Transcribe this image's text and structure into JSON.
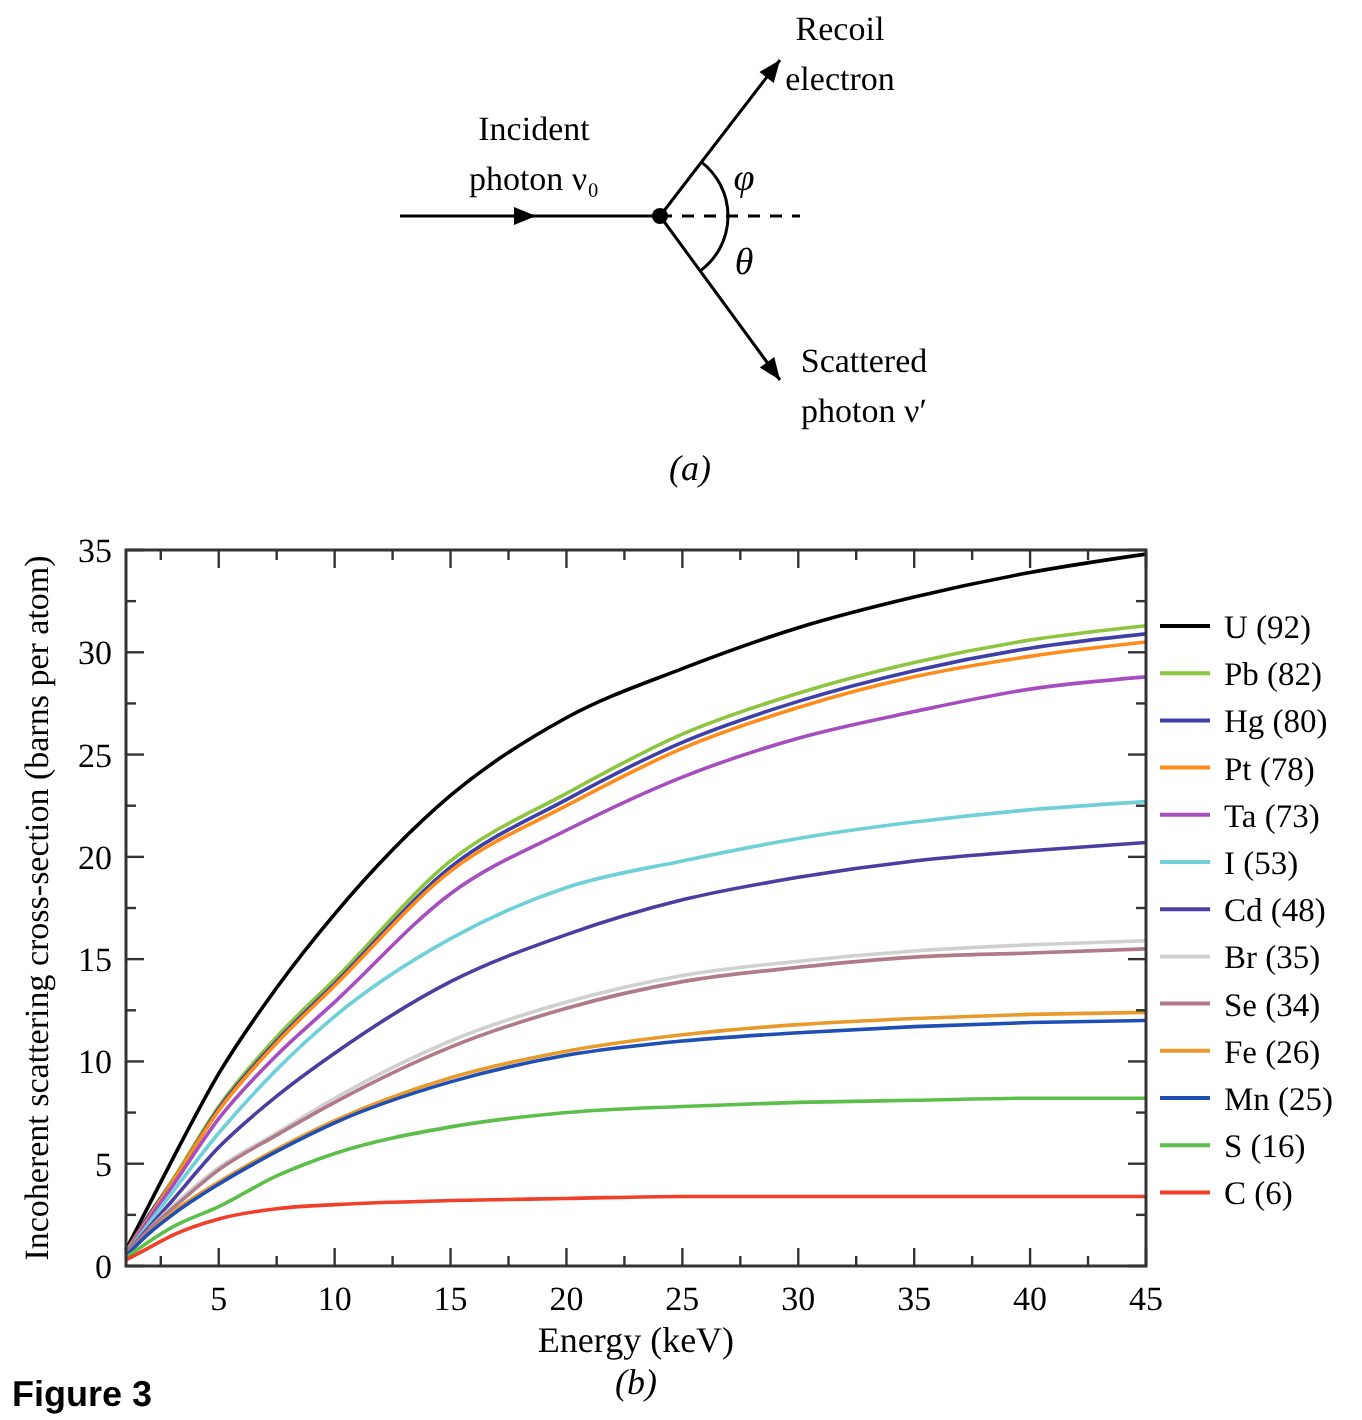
{
  "chart_data": {
    "type": "line",
    "xlabel": "Energy (keV)",
    "ylabel": "Incoherent scattering cross-section (barns per atom)",
    "annotations": [
      "Incident photon ν₀",
      "Recoil electron",
      "Scattered photon ν′",
      "φ",
      "θ",
      "(a)",
      "(b)",
      "Figure 3"
    ],
    "x": [
      1,
      2,
      3,
      5,
      7.5,
      10,
      15,
      20,
      25,
      30,
      35,
      40,
      45
    ],
    "xlim": [
      1,
      45
    ],
    "xticks": [
      {
        "value": 2.5,
        "label": null
      },
      5,
      {
        "value": 7.5,
        "label": null
      },
      10,
      {
        "value": 12.5,
        "label": null
      },
      15,
      {
        "value": 17.5,
        "label": null
      },
      20,
      {
        "value": 22.5,
        "label": null
      },
      25,
      {
        "value": 27.5,
        "label": null
      },
      30,
      {
        "value": 32.5,
        "label": null
      },
      35,
      {
        "value": 37.5,
        "label": null
      },
      40,
      {
        "value": 42.5,
        "label": null
      },
      45
    ],
    "ylim": [
      0,
      35
    ],
    "yticks": [
      0,
      {
        "value": 2.5,
        "label": null
      },
      5,
      {
        "value": 7.5,
        "label": null
      },
      10,
      {
        "value": 12.5,
        "label": null
      },
      15,
      {
        "value": 17.5,
        "label": null
      },
      20,
      {
        "value": 22.5,
        "label": null
      },
      25,
      {
        "value": 27.5,
        "label": null
      },
      30,
      {
        "value": 32.5,
        "label": null
      },
      35
    ],
    "grid": false,
    "legend": "right",
    "marker": "none",
    "line_style": "solid",
    "series": [
      {
        "name": "U (92)",
        "color": "#000000",
        "values": [
          0.8,
          3.0,
          5.2,
          9.4,
          13.6,
          17.2,
          23.0,
          26.8,
          29.2,
          31.2,
          32.7,
          33.9,
          34.8
        ]
      },
      {
        "name": "Pb (82)",
        "color": "#8cc63f",
        "values": [
          0.7,
          2.5,
          4.2,
          7.8,
          11.2,
          14.0,
          19.8,
          23.1,
          26.0,
          28.0,
          29.5,
          30.6,
          31.3
        ]
      },
      {
        "name": "Hg (80)",
        "color": "#3f3fa8",
        "values": [
          0.7,
          2.5,
          4.1,
          7.7,
          11.0,
          13.8,
          19.5,
          22.8,
          25.6,
          27.6,
          29.1,
          30.2,
          30.9
        ]
      },
      {
        "name": "Pt (78)",
        "color": "#ff8c1a",
        "values": [
          0.7,
          2.4,
          4.1,
          7.6,
          10.9,
          13.7,
          19.3,
          22.5,
          25.3,
          27.3,
          28.8,
          29.8,
          30.5
        ]
      },
      {
        "name": "Ta (73)",
        "color": "#a64ec0",
        "values": [
          0.6,
          2.3,
          3.9,
          7.2,
          10.3,
          12.9,
          18.2,
          21.3,
          23.9,
          25.8,
          27.1,
          28.2,
          28.8
        ]
      },
      {
        "name": "I (53)",
        "color": "#6fd0d8",
        "values": [
          0.6,
          2.1,
          3.6,
          6.5,
          9.6,
          12.2,
          16.0,
          18.5,
          19.8,
          20.9,
          21.7,
          22.3,
          22.7
        ]
      },
      {
        "name": "Cd (48)",
        "color": "#4a3ea0",
        "values": [
          0.6,
          1.9,
          3.2,
          5.8,
          8.3,
          10.4,
          13.9,
          16.2,
          17.9,
          19.0,
          19.8,
          20.3,
          20.7
        ]
      },
      {
        "name": "Br (35)",
        "color": "#d0d0d0",
        "values": [
          null,
          1.8,
          2.9,
          4.8,
          6.5,
          8.2,
          11.0,
          12.9,
          14.2,
          14.9,
          15.4,
          15.7,
          15.9
        ]
      },
      {
        "name": "Se (34)",
        "color": "#b07a88",
        "values": [
          0.6,
          1.8,
          2.8,
          4.7,
          6.4,
          8.0,
          10.7,
          12.6,
          13.9,
          14.6,
          15.1,
          15.3,
          15.5
        ]
      },
      {
        "name": "Fe (26)",
        "color": "#e89a2a",
        "values": [
          0.5,
          1.6,
          2.6,
          4.1,
          5.7,
          7.1,
          9.2,
          10.5,
          11.3,
          11.8,
          12.1,
          12.3,
          12.4
        ]
      },
      {
        "name": "Mn (25)",
        "color": "#1f4fb4",
        "values": [
          0.5,
          1.6,
          2.5,
          4.0,
          5.6,
          7.0,
          9.0,
          10.3,
          11.0,
          11.4,
          11.7,
          11.9,
          12.0
        ]
      },
      {
        "name": "S (16)",
        "color": "#5cbf4a",
        "values": [
          0.4,
          1.2,
          1.9,
          2.9,
          4.4,
          5.5,
          6.8,
          7.5,
          7.8,
          8.0,
          8.1,
          8.2,
          8.2
        ]
      },
      {
        "name": "C (6)",
        "color": "#f0402a",
        "values": [
          0.3,
          0.9,
          1.5,
          2.3,
          2.8,
          3.0,
          3.2,
          3.3,
          3.4,
          3.4,
          3.4,
          3.4,
          3.4
        ]
      }
    ]
  }
}
